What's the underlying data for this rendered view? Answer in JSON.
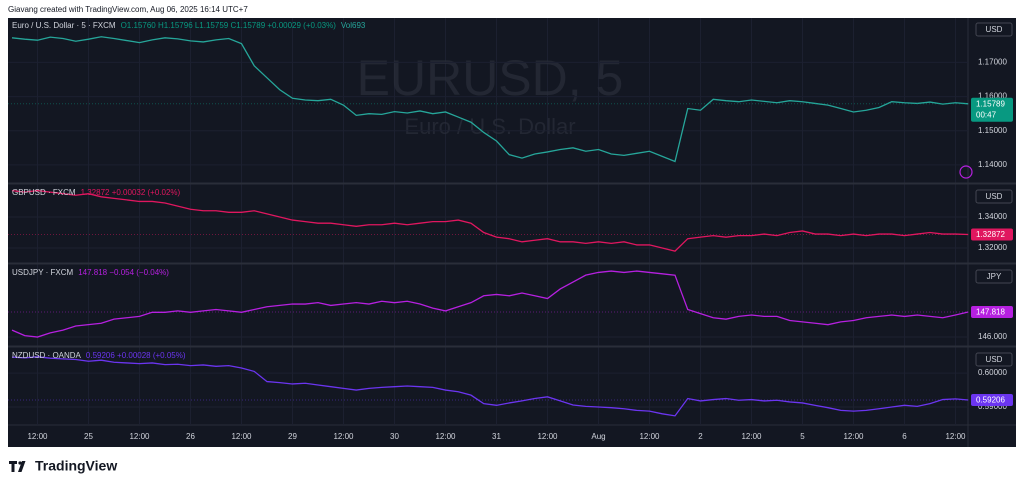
{
  "header": {
    "credit": "Giavang created with TradingView.com, Aug 06, 2025 16:14 UTC+7"
  },
  "footer": {
    "brand": "TradingView"
  },
  "chart_data": [
    {
      "type": "line",
      "title": "Euro / U.S. Dollar · 5 · FXCM",
      "legend_values": "O1.15760 H1.15796 L1.15759 C1.15789 +0.00029 (+0.03%)",
      "volume": "Vol693",
      "watermark": "EURUSD, 5",
      "watermark_subtitle": "Euro / U.S. Dollar",
      "currency": "USD",
      "last_price_label": "1.15789",
      "countdown": "00:47",
      "color": "#26a69a",
      "label_color": "#089981",
      "ylim": [
        1.135,
        1.183
      ],
      "yticks": [
        {
          "value": 1.14,
          "label": "1.14000"
        },
        {
          "value": 1.15,
          "label": "1.15000"
        },
        {
          "value": 1.16,
          "label": "1.16000"
        },
        {
          "value": 1.17,
          "label": "1.17000"
        }
      ],
      "values": [
        1.1772,
        1.1768,
        1.1765,
        1.1774,
        1.177,
        1.1762,
        1.1768,
        1.1775,
        1.177,
        1.1764,
        1.1758,
        1.1766,
        1.1772,
        1.1769,
        1.1763,
        1.176,
        1.1766,
        1.177,
        1.1755,
        1.169,
        1.1655,
        1.162,
        1.1595,
        1.159,
        1.1588,
        1.1592,
        1.1575,
        1.1545,
        1.155,
        1.1548,
        1.1556,
        1.1552,
        1.1558,
        1.155,
        1.1555,
        1.154,
        1.1525,
        1.1495,
        1.147,
        1.143,
        1.142,
        1.1432,
        1.1438,
        1.1445,
        1.145,
        1.144,
        1.1445,
        1.1432,
        1.1428,
        1.1434,
        1.144,
        1.1425,
        1.141,
        1.1565,
        1.156,
        1.1592,
        1.1588,
        1.1585,
        1.159,
        1.1586,
        1.1582,
        1.1588,
        1.1585,
        1.158,
        1.1575,
        1.1565,
        1.1555,
        1.156,
        1.1568,
        1.1585,
        1.1582,
        1.158,
        1.1584,
        1.1578,
        1.1582,
        1.15789
      ]
    },
    {
      "type": "line",
      "title": "GBPUSD · FXCM",
      "legend_values": "1.32872 +0.00032 (+0.02%)",
      "currency": "USD",
      "last_price_label": "1.32872",
      "color": "#e0175f",
      "label_color": "#e0175f",
      "ylim": [
        1.311,
        1.3606
      ],
      "yticks": [
        {
          "value": 1.32,
          "label": "1.32000"
        },
        {
          "value": 1.34,
          "label": "1.34000"
        }
      ],
      "values": [
        1.357,
        1.356,
        1.357,
        1.356,
        1.355,
        1.354,
        1.355,
        1.353,
        1.352,
        1.351,
        1.35,
        1.35,
        1.349,
        1.347,
        1.345,
        1.344,
        1.344,
        1.343,
        1.343,
        1.344,
        1.342,
        1.34,
        1.338,
        1.337,
        1.336,
        1.336,
        1.335,
        1.334,
        1.335,
        1.335,
        1.336,
        1.335,
        1.336,
        1.337,
        1.337,
        1.338,
        1.336,
        1.33,
        1.327,
        1.326,
        1.324,
        1.325,
        1.326,
        1.324,
        1.324,
        1.323,
        1.324,
        1.323,
        1.324,
        1.322,
        1.322,
        1.32,
        1.318,
        1.326,
        1.327,
        1.328,
        1.327,
        1.328,
        1.328,
        1.329,
        1.328,
        1.33,
        1.331,
        1.329,
        1.329,
        1.328,
        1.329,
        1.328,
        1.329,
        1.329,
        1.328,
        1.329,
        1.33,
        1.329,
        1.329,
        1.32872
      ]
    },
    {
      "type": "line",
      "title": "USDJPY · FXCM",
      "legend_values": "147.818 −0.054 (−0.04%)",
      "currency": "JPY",
      "last_price_label": "147.818",
      "color": "#b620e0",
      "label_color": "#b620e0",
      "ylim": [
        145.42,
        151.24
      ],
      "yticks": [
        {
          "value": 146,
          "label": "146.000"
        }
      ],
      "values": [
        146.5,
        146.1,
        146.0,
        146.3,
        146.5,
        146.8,
        146.9,
        147.0,
        147.3,
        147.4,
        147.5,
        147.8,
        147.8,
        147.9,
        147.8,
        147.9,
        148.0,
        147.9,
        147.8,
        148.0,
        148.2,
        148.3,
        148.4,
        148.4,
        148.5,
        148.3,
        148.4,
        148.5,
        148.4,
        148.6,
        148.5,
        148.6,
        148.4,
        148.1,
        147.9,
        148.2,
        148.5,
        149.0,
        149.1,
        149.0,
        149.2,
        149.0,
        148.8,
        149.5,
        150.0,
        150.5,
        150.7,
        150.8,
        150.7,
        150.8,
        150.7,
        150.6,
        150.5,
        148.0,
        147.7,
        147.4,
        147.3,
        147.5,
        147.6,
        147.5,
        147.5,
        147.2,
        147.1,
        147.0,
        146.9,
        147.1,
        147.2,
        147.4,
        147.5,
        147.6,
        147.5,
        147.6,
        147.5,
        147.4,
        147.6,
        147.818
      ]
    },
    {
      "type": "line",
      "title": "NZDUSD · OANDA",
      "legend_values": "0.59206 +0.00028 (+0.05%)",
      "currency": "USD",
      "last_price_label": "0.59206",
      "color": "#6b35f0",
      "label_color": "#6b35f0",
      "ylim": [
        0.5847,
        0.6074
      ],
      "yticks": [
        {
          "value": 0.59,
          "label": "0.59000"
        },
        {
          "value": 0.6,
          "label": "0.60000"
        }
      ],
      "categories": [
        null,
        null,
        "12:00",
        null,
        null,
        null,
        "25",
        null,
        null,
        null,
        "12:00",
        null,
        null,
        null,
        "26",
        null,
        null,
        null,
        "12:00",
        null,
        null,
        null,
        "29",
        null,
        null,
        null,
        "12:00",
        null,
        null,
        null,
        "30",
        null,
        null,
        null,
        "12:00",
        null,
        null,
        null,
        "31",
        null,
        null,
        null,
        "12:00",
        null,
        null,
        null,
        "Aug",
        null,
        null,
        null,
        "12:00",
        null,
        null,
        null,
        "2",
        null,
        null,
        null,
        "12:00",
        null,
        null,
        null,
        "5",
        null,
        null,
        null,
        "12:00",
        null,
        null,
        null,
        "6",
        null,
        null,
        null,
        "12:00",
        null
      ],
      "values": [
        0.6047,
        0.6045,
        0.6048,
        0.6044,
        0.6042,
        0.604,
        0.6035,
        0.6038,
        0.6032,
        0.603,
        0.6028,
        0.603,
        0.6025,
        0.6026,
        0.6022,
        0.6024,
        0.602,
        0.6022,
        0.6015,
        0.6005,
        0.5975,
        0.5972,
        0.5968,
        0.597,
        0.5965,
        0.596,
        0.5955,
        0.595,
        0.5955,
        0.5958,
        0.596,
        0.5962,
        0.596,
        0.5958,
        0.595,
        0.5945,
        0.5935,
        0.591,
        0.5905,
        0.5912,
        0.5918,
        0.5925,
        0.593,
        0.5918,
        0.5906,
        0.5902,
        0.59,
        0.5898,
        0.5895,
        0.589,
        0.5888,
        0.588,
        0.5874,
        0.5925,
        0.5918,
        0.5922,
        0.5925,
        0.592,
        0.5922,
        0.5918,
        0.592,
        0.5915,
        0.5912,
        0.5905,
        0.5898,
        0.589,
        0.5888,
        0.589,
        0.5895,
        0.59,
        0.5905,
        0.5902,
        0.591,
        0.5922,
        0.5924,
        0.59206
      ]
    }
  ]
}
